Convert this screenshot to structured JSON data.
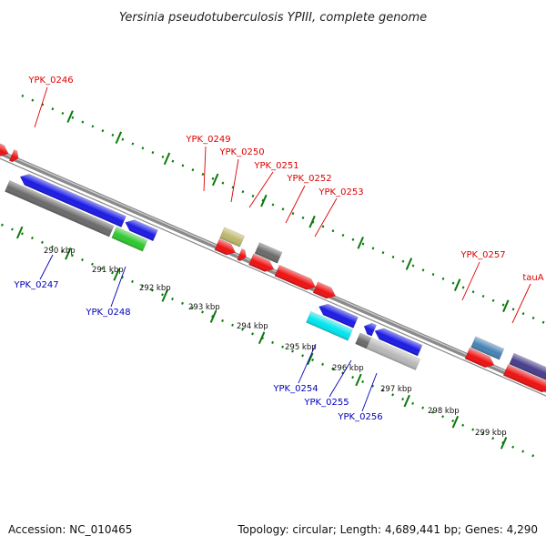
{
  "title": "Yersinia pseudotuberculosis YPIII, complete genome",
  "footer": {
    "accession": "Accession: NC_010465",
    "summary": "Topology: circular; Length: 4,689,441 bp; Genes: 4,290"
  },
  "colors": {
    "forward_label": "#dd0000",
    "reverse_label": "#0000bb",
    "tick": "#0a7a0a",
    "backbone": "#888888"
  },
  "ticks": [
    "290 kbp",
    "291 kbp",
    "292 kbp",
    "293 kbp",
    "294 kbp",
    "295 kbp",
    "296 kbp",
    "297 kbp",
    "298 kbp",
    "299 kbp"
  ],
  "genes_forward": [
    "YPK_0246",
    "YPK_0249",
    "YPK_0250",
    "YPK_0251",
    "YPK_0252",
    "YPK_0253",
    "YPK_0257",
    "tauA"
  ],
  "genes_reverse": [
    "YPK_0247",
    "YPK_0248",
    "YPK_0254",
    "YPK_0255",
    "YPK_0256"
  ]
}
